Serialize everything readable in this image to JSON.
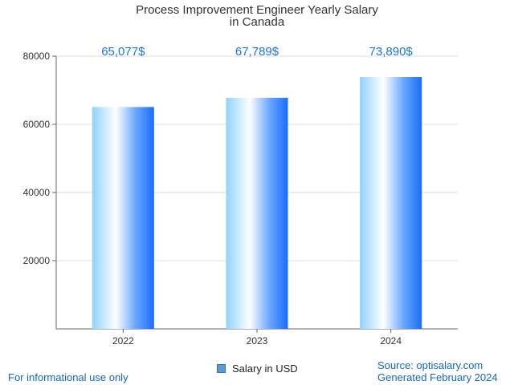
{
  "chart_data": {
    "type": "bar",
    "title_lines": [
      "Process Improvement Engineer Yearly Salary",
      "in Canada"
    ],
    "categories": [
      "2022",
      "2023",
      "2024"
    ],
    "series": [
      {
        "name": "Salary in USD",
        "values": [
          65077,
          67789,
          73890
        ]
      }
    ],
    "data_labels": [
      "65,077$",
      "67,789$",
      "73,890$"
    ],
    "yticks": [
      20000,
      40000,
      60000,
      80000
    ],
    "ylim": [
      0,
      80000
    ],
    "grid": true,
    "legend": "bottom-center",
    "colors": {
      "bar_dark": "#1a6cff",
      "bar_light": "#a8dcff",
      "label": "#1a73e8",
      "axis": "#666666",
      "grid": "#dddddd"
    }
  },
  "footer": {
    "left": "For informational use only",
    "right_source": "Source: optisalary.com",
    "right_generated": "Generated February 2024"
  }
}
